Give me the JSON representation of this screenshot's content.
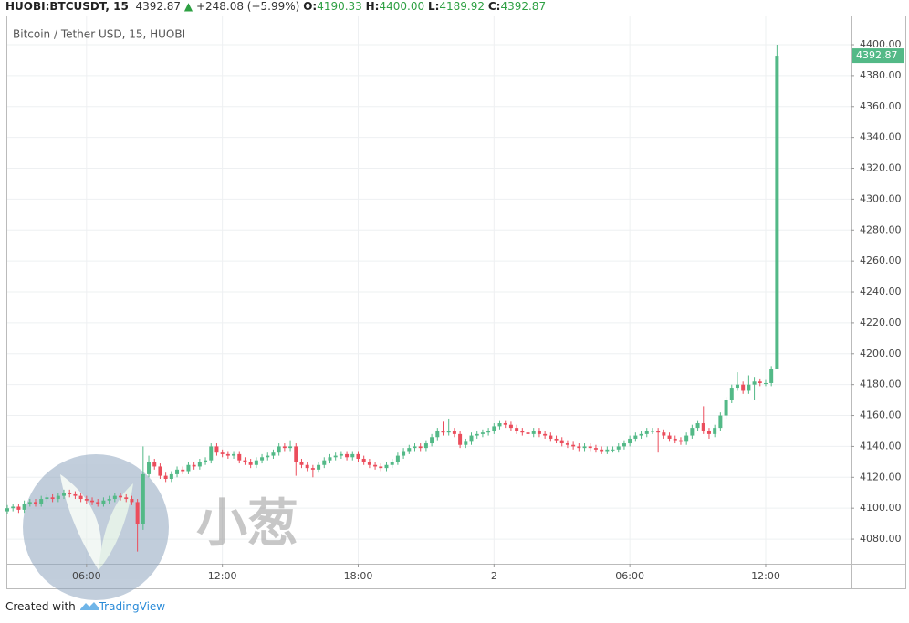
{
  "header": {
    "symbol": "HUOBI:BTCUSDT, 15",
    "last": "4392.87",
    "arrow": "▲",
    "change": "+248.08 (+5.99%)",
    "o_label": "O:",
    "o": "4190.33",
    "h_label": "H:",
    "h": "4400.00",
    "l_label": "L:",
    "l": "4189.92",
    "c_label": "C:",
    "c": "4392.87"
  },
  "footer": {
    "created": "Created with",
    "brand": "TradingView"
  },
  "watermark": "小葱",
  "chart_data": {
    "type": "candlestick",
    "subtitle": "Bitcoin / Tether USD, 15, HUOBI",
    "up_color": "#53b987",
    "down_color": "#eb4d5c",
    "grid": true,
    "xlim": [
      0,
      149
    ],
    "xticks": [
      {
        "value": 14,
        "label": "06:00"
      },
      {
        "value": 38,
        "label": "12:00"
      },
      {
        "value": 62,
        "label": "18:00"
      },
      {
        "value": 86,
        "label": "2"
      },
      {
        "value": 110,
        "label": "06:00"
      },
      {
        "value": 134,
        "label": "12:00"
      }
    ],
    "ylim": [
      4064.1,
      4418.3
    ],
    "yticks": [
      {
        "value": 4080,
        "label": "4080.00"
      },
      {
        "value": 4100,
        "label": "4100.00"
      },
      {
        "value": 4120,
        "label": "4120.00"
      },
      {
        "value": 4140,
        "label": "4140.00"
      },
      {
        "value": 4160,
        "label": "4160.00"
      },
      {
        "value": 4180,
        "label": "4180.00"
      },
      {
        "value": 4200,
        "label": "4200.00"
      },
      {
        "value": 4220,
        "label": "4220.00"
      },
      {
        "value": 4240,
        "label": "4240.00"
      },
      {
        "value": 4260,
        "label": "4260.00"
      },
      {
        "value": 4280,
        "label": "4280.00"
      },
      {
        "value": 4300,
        "label": "4300.00"
      },
      {
        "value": 4320,
        "label": "4320.00"
      },
      {
        "value": 4340,
        "label": "4340.00"
      },
      {
        "value": 4360,
        "label": "4360.00"
      },
      {
        "value": 4380,
        "label": "4380.00"
      },
      {
        "value": 4400,
        "label": "4400.00"
      }
    ],
    "open": [
      4098,
      4100,
      4101,
      4099,
      4103,
      4104,
      4103,
      4106,
      4107,
      4106,
      4108,
      4110,
      4109,
      4108,
      4106,
      4105,
      4104,
      4103,
      4105,
      4106,
      4108,
      4107,
      4106,
      4104,
      4090,
      4122,
      4130,
      4127,
      4121,
      4119,
      4122,
      4125,
      4124,
      4128,
      4127,
      4130,
      4131,
      4140,
      4136,
      4135,
      4134,
      4135,
      4131,
      4130,
      4128,
      4131,
      4133,
      4134,
      4136,
      4140,
      4139,
      4140,
      4130,
      4128,
      4126,
      4125,
      4128,
      4131,
      4133,
      4134,
      4135,
      4133,
      4135,
      4132,
      4130,
      4128,
      4127,
      4126,
      4128,
      4130,
      4134,
      4137,
      4139,
      4140,
      4139,
      4142,
      4146,
      4150,
      4149,
      4150,
      4148,
      4141,
      4143,
      4147,
      4148,
      4149,
      4150,
      4153,
      4155,
      4154,
      4152,
      4150,
      4149,
      4148,
      4150,
      4148,
      4147,
      4145,
      4144,
      4142,
      4141,
      4140,
      4139,
      4140,
      4139,
      4138,
      4137,
      4138,
      4138,
      4140,
      4142,
      4145,
      4147,
      4148,
      4150,
      4150,
      4149,
      4147,
      4145,
      4144,
      4143,
      4147,
      4152,
      4155,
      4150,
      4148,
      4152,
      4160,
      4170,
      4178,
      4180,
      4176,
      4180,
      4182,
      4181,
      4181,
      4190.33
    ],
    "high": [
      4102,
      4103,
      4103,
      4105,
      4106,
      4106,
      4108,
      4109,
      4109,
      4110,
      4112,
      4112,
      4111,
      4110,
      4108,
      4107,
      4106,
      4107,
      4108,
      4110,
      4110,
      4109,
      4108,
      4106,
      4140,
      4134,
      4132,
      4129,
      4123,
      4124,
      4127,
      4127,
      4130,
      4130,
      4132,
      4133,
      4142,
      4142,
      4138,
      4137,
      4137,
      4137,
      4133,
      4132,
      4133,
      4135,
      4136,
      4138,
      4142,
      4142,
      4144,
      4142,
      4132,
      4130,
      4128,
      4130,
      4133,
      4135,
      4136,
      4137,
      4137,
      4137,
      4137,
      4134,
      4132,
      4130,
      4129,
      4130,
      4132,
      4136,
      4139,
      4141,
      4142,
      4142,
      4144,
      4148,
      4152,
      4156,
      4158,
      4152,
      4150,
      4145,
      4149,
      4150,
      4151,
      4152,
      4155,
      4157,
      4157,
      4156,
      4154,
      4152,
      4151,
      4152,
      4152,
      4150,
      4149,
      4147,
      4146,
      4144,
      4143,
      4142,
      4142,
      4142,
      4141,
      4140,
      4140,
      4140,
      4142,
      4144,
      4147,
      4149,
      4150,
      4152,
      4152,
      4152,
      4151,
      4149,
      4147,
      4146,
      4149,
      4154,
      4157,
      4166,
      4152,
      4154,
      4162,
      4172,
      4180,
      4188,
      4182,
      4186,
      4185,
      4184,
      4183,
      4192,
      4400
    ],
    "low": [
      4096,
      4098,
      4097,
      4097,
      4101,
      4101,
      4101,
      4104,
      4104,
      4104,
      4106,
      4107,
      4106,
      4104,
      4103,
      4102,
      4101,
      4101,
      4103,
      4104,
      4105,
      4104,
      4102,
      4072,
      4086,
      4120,
      4125,
      4119,
      4117,
      4117,
      4120,
      4122,
      4122,
      4125,
      4125,
      4128,
      4129,
      4134,
      4133,
      4132,
      4132,
      4129,
      4128,
      4126,
      4126,
      4129,
      4131,
      4132,
      4134,
      4137,
      4137,
      4121,
      4126,
      4124,
      4120,
      4123,
      4126,
      4129,
      4131,
      4132,
      4131,
      4131,
      4130,
      4128,
      4126,
      4125,
      4124,
      4124,
      4126,
      4128,
      4132,
      4135,
      4137,
      4137,
      4137,
      4140,
      4144,
      4147,
      4147,
      4146,
      4139,
      4139,
      4141,
      4145,
      4146,
      4147,
      4148,
      4151,
      4152,
      4150,
      4148,
      4147,
      4146,
      4146,
      4146,
      4145,
      4143,
      4142,
      4140,
      4139,
      4138,
      4137,
      4137,
      4137,
      4136,
      4135,
      4135,
      4136,
      4136,
      4138,
      4140,
      4143,
      4145,
      4146,
      4148,
      4136,
      4145,
      4143,
      4142,
      4141,
      4141,
      4145,
      4150,
      4148,
      4145,
      4146,
      4150,
      4158,
      4168,
      4176,
      4174,
      4174,
      4170,
      4179,
      4179,
      4179,
      4189.92
    ],
    "close": [
      4100,
      4101,
      4099,
      4103,
      4104,
      4103,
      4106,
      4107,
      4106,
      4108,
      4110,
      4109,
      4108,
      4106,
      4105,
      4104,
      4103,
      4105,
      4106,
      4108,
      4107,
      4106,
      4104,
      4090,
      4122,
      4130,
      4127,
      4121,
      4119,
      4122,
      4125,
      4124,
      4128,
      4127,
      4130,
      4131,
      4140,
      4136,
      4135,
      4134,
      4135,
      4131,
      4130,
      4128,
      4131,
      4133,
      4134,
      4136,
      4140,
      4139,
      4140,
      4130,
      4128,
      4126,
      4125,
      4128,
      4131,
      4133,
      4134,
      4135,
      4133,
      4135,
      4132,
      4130,
      4128,
      4127,
      4126,
      4128,
      4130,
      4134,
      4137,
      4139,
      4140,
      4139,
      4142,
      4146,
      4150,
      4149,
      4150,
      4148,
      4141,
      4143,
      4147,
      4148,
      4149,
      4150,
      4153,
      4155,
      4154,
      4152,
      4150,
      4149,
      4148,
      4150,
      4148,
      4147,
      4145,
      4144,
      4142,
      4141,
      4140,
      4139,
      4140,
      4139,
      4138,
      4137,
      4138,
      4138,
      4140,
      4142,
      4145,
      4147,
      4148,
      4150,
      4150,
      4149,
      4147,
      4145,
      4144,
      4143,
      4147,
      4152,
      4155,
      4150,
      4148,
      4152,
      4160,
      4170,
      4178,
      4180,
      4176,
      4180,
      4182,
      4181,
      4181,
      4190.33,
      4392.87
    ]
  }
}
